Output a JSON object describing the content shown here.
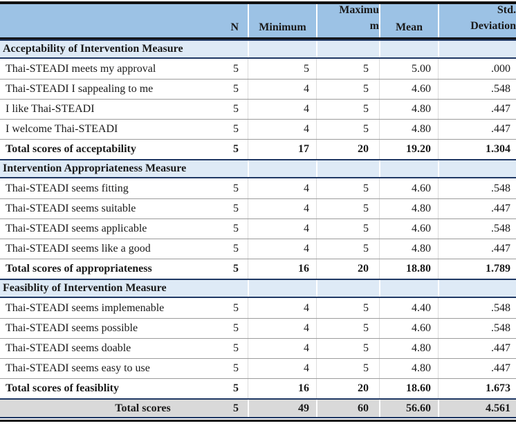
{
  "table": {
    "columns": {
      "label": "",
      "n": "N",
      "minimum": "Minimum",
      "maximum_lines": [
        "Maximu",
        "m"
      ],
      "mean": "Mean",
      "std_lines": [
        "Std.",
        "Deviation"
      ]
    },
    "sections": [
      {
        "title": "Acceptability of Intervention Measure",
        "rows": [
          {
            "label": "Thai-STEADI meets my approval",
            "n": "5",
            "min": "5",
            "max": "5",
            "mean": "5.00",
            "std": ".000",
            "bold": false
          },
          {
            "label": "Thai-STEADI I sappealing to me",
            "n": "5",
            "min": "4",
            "max": "5",
            "mean": "4.60",
            "std": ".548",
            "bold": false
          },
          {
            "label": "I like Thai-STEADI",
            "n": "5",
            "min": "4",
            "max": "5",
            "mean": "4.80",
            "std": ".447",
            "bold": false
          },
          {
            "label": "I welcome Thai-STEADI",
            "n": "5",
            "min": "4",
            "max": "5",
            "mean": "4.80",
            "std": ".447",
            "bold": false
          },
          {
            "label": "Total scores of acceptability",
            "n": "5",
            "min": "17",
            "max": "20",
            "mean": "19.20",
            "std": "1.304",
            "bold": true
          }
        ]
      },
      {
        "title": "Intervention Appropriateness Measure",
        "rows": [
          {
            "label": "Thai-STEADI seems fitting",
            "n": "5",
            "min": "4",
            "max": "5",
            "mean": "4.60",
            "std": ".548",
            "bold": false
          },
          {
            "label": "Thai-STEADI seems suitable",
            "n": "5",
            "min": "4",
            "max": "5",
            "mean": "4.80",
            "std": ".447",
            "bold": false
          },
          {
            "label": "Thai-STEADI seems applicable",
            "n": "5",
            "min": "4",
            "max": "5",
            "mean": "4.60",
            "std": ".548",
            "bold": false
          },
          {
            "label": "Thai-STEADI seems like a good",
            "n": "5",
            "min": "4",
            "max": "5",
            "mean": "4.80",
            "std": ".447",
            "bold": false
          },
          {
            "label": "Total scores of appropriateness",
            "n": "5",
            "min": "16",
            "max": "20",
            "mean": "18.80",
            "std": "1.789",
            "bold": true
          }
        ]
      },
      {
        "title": "Feasiblity of Intervention Measure",
        "rows": [
          {
            "label": "Thai-STEADI seems implemenable",
            "n": "5",
            "min": "4",
            "max": "5",
            "mean": "4.40",
            "std": ".548",
            "bold": false
          },
          {
            "label": "Thai-STEADI seems possible",
            "n": "5",
            "min": "4",
            "max": "5",
            "mean": "4.60",
            "std": ".548",
            "bold": false
          },
          {
            "label": "Thai-STEADI seems doable",
            "n": "5",
            "min": "4",
            "max": "5",
            "mean": "4.80",
            "std": ".447",
            "bold": false
          },
          {
            "label": "Thai-STEADI seems easy to use",
            "n": "5",
            "min": "4",
            "max": "5",
            "mean": "4.80",
            "std": ".447",
            "bold": false
          },
          {
            "label": "Total scores of feasiblity",
            "n": "5",
            "min": "16",
            "max": "20",
            "mean": "18.60",
            "std": "1.673",
            "bold": true
          }
        ]
      }
    ],
    "footer": {
      "label": "Total scores",
      "n": "5",
      "min": "49",
      "max": "60",
      "mean": "56.60",
      "std": "4.561"
    },
    "colors": {
      "header_bg": "#9CC2E5",
      "section_bg": "#DEEAF6",
      "footer_bg": "#D9D9D9",
      "accent_border": "#1F3864"
    }
  }
}
